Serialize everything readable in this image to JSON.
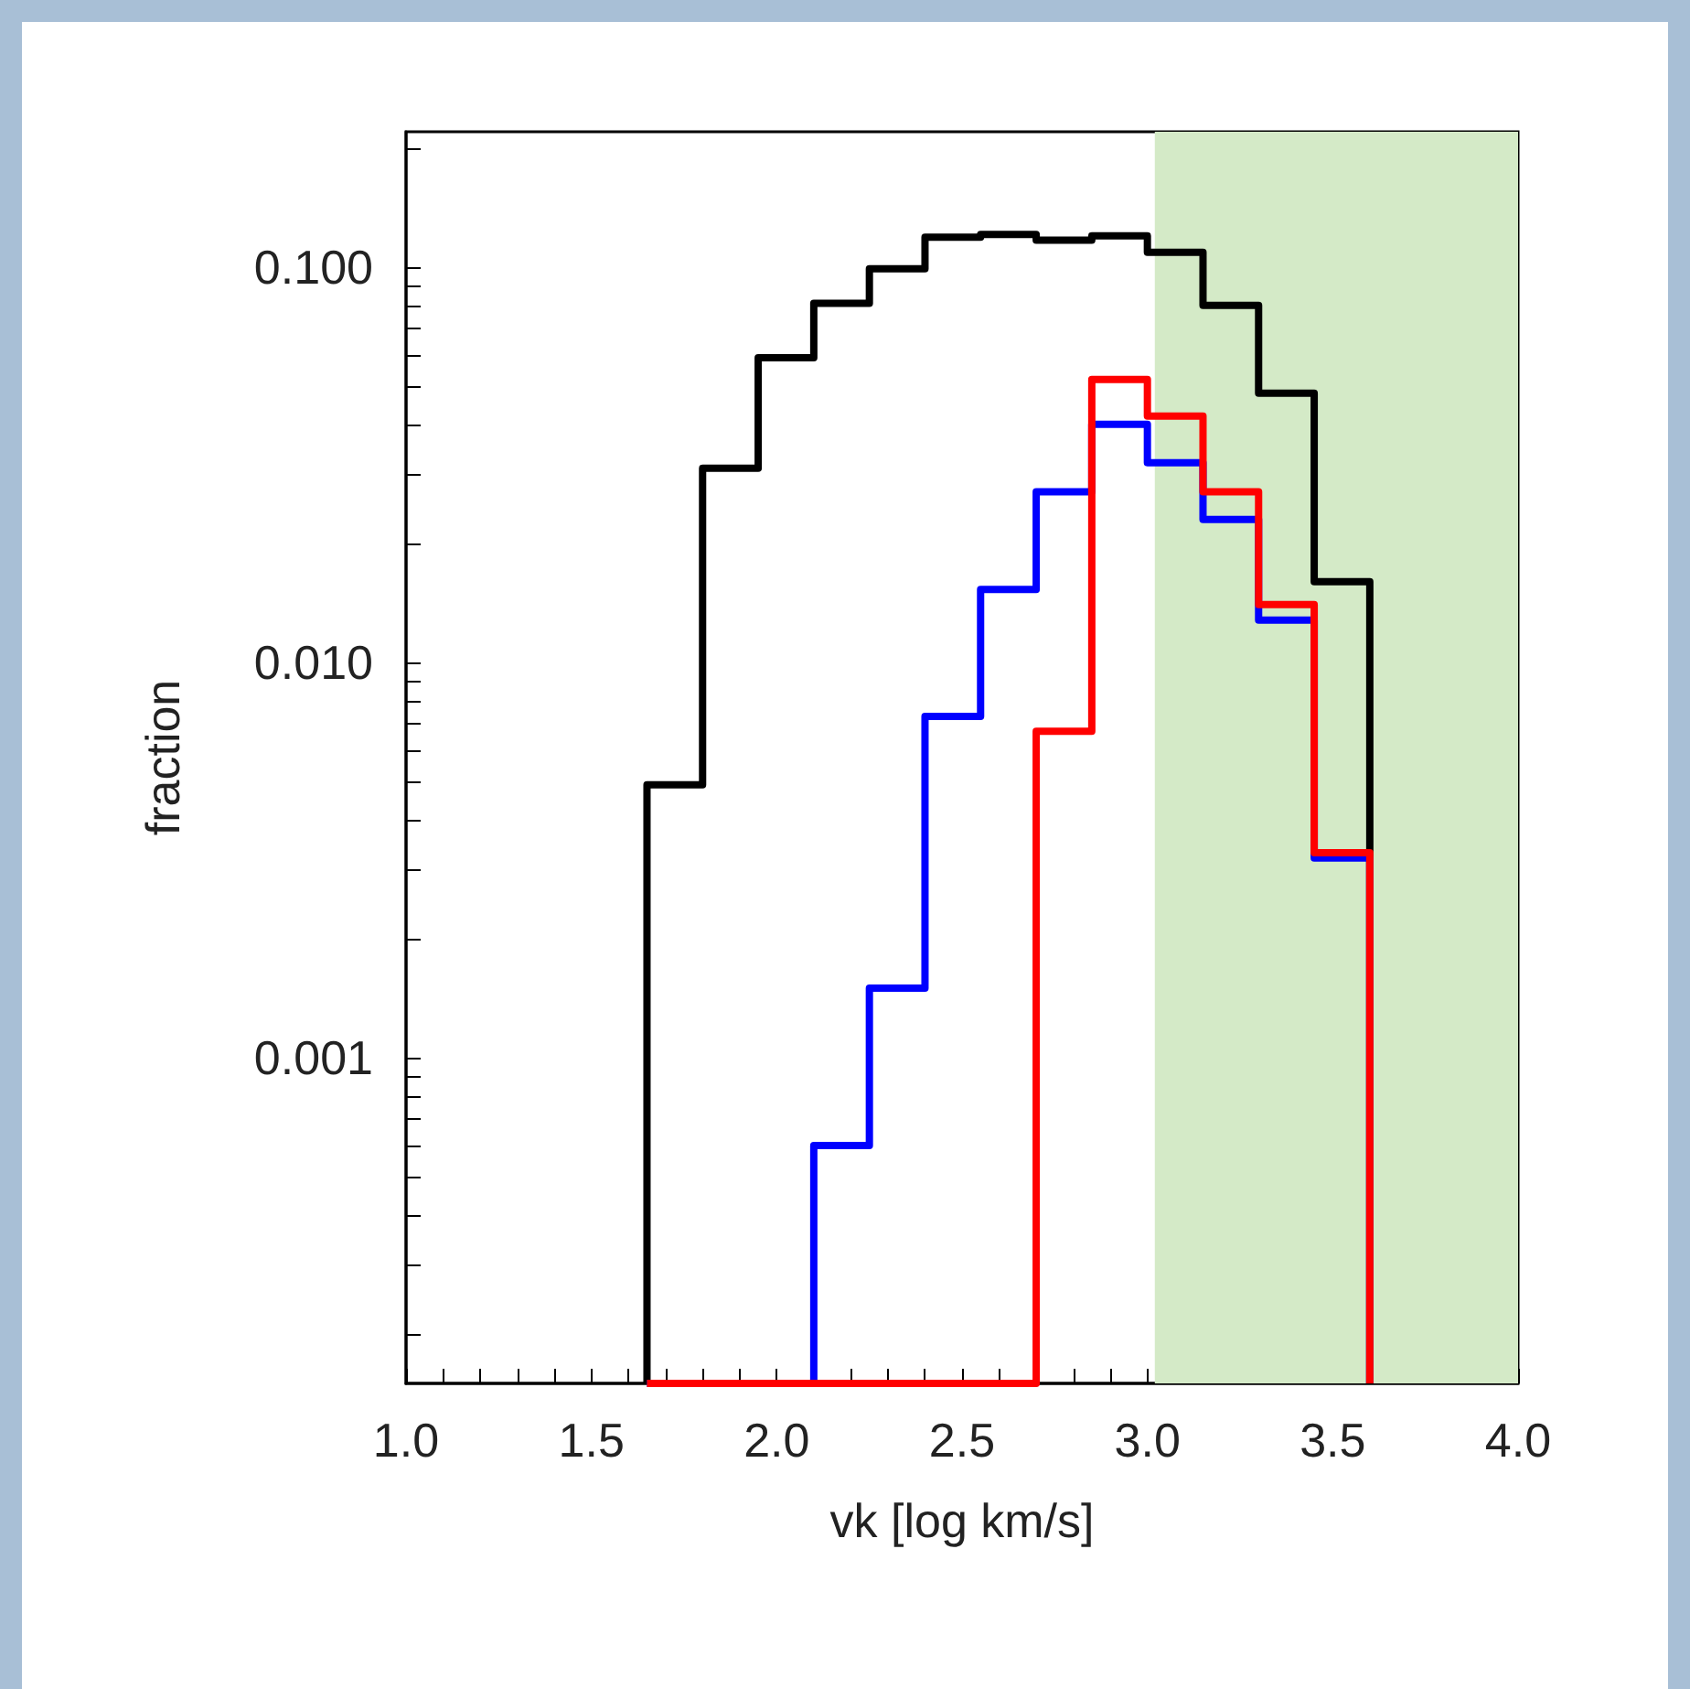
{
  "chart_data": {
    "type": "histogram",
    "xlabel": "vk [log km/s]",
    "ylabel": "fraction",
    "log": "y",
    "grid": false,
    "xlim": [
      1.0,
      4.0
    ],
    "xticks": [
      {
        "value": 1.0,
        "label": "1.0"
      },
      {
        "value": 1.1,
        "label": null
      },
      {
        "value": 1.2,
        "label": null
      },
      {
        "value": 1.3,
        "label": null
      },
      {
        "value": 1.4,
        "label": null
      },
      {
        "value": 1.5,
        "label": "1.5"
      },
      {
        "value": 1.6,
        "label": null
      },
      {
        "value": 1.7,
        "label": null
      },
      {
        "value": 1.8,
        "label": null
      },
      {
        "value": 1.9,
        "label": null
      },
      {
        "value": 2.0,
        "label": "2.0"
      },
      {
        "value": 2.1,
        "label": null
      },
      {
        "value": 2.2,
        "label": null
      },
      {
        "value": 2.3,
        "label": null
      },
      {
        "value": 2.4,
        "label": null
      },
      {
        "value": 2.5,
        "label": "2.5"
      },
      {
        "value": 2.6,
        "label": null
      },
      {
        "value": 2.7,
        "label": null
      },
      {
        "value": 2.8,
        "label": null
      },
      {
        "value": 2.9,
        "label": null
      },
      {
        "value": 3.0,
        "label": "3.0"
      },
      {
        "value": 3.1,
        "label": null
      },
      {
        "value": 3.2,
        "label": null
      },
      {
        "value": 3.3,
        "label": null
      },
      {
        "value": 3.4,
        "label": null
      },
      {
        "value": 3.5,
        "label": "3.5"
      },
      {
        "value": 3.6,
        "label": null
      },
      {
        "value": 3.7,
        "label": null
      },
      {
        "value": 3.8,
        "label": null
      },
      {
        "value": 3.9,
        "label": null
      },
      {
        "value": 4.0,
        "label": "4.0"
      }
    ],
    "ylim": [
      0.00015,
      0.22
    ],
    "yticks": [
      {
        "value": 0.0002,
        "label": null
      },
      {
        "value": 0.0003,
        "label": null
      },
      {
        "value": 0.0004,
        "label": null
      },
      {
        "value": 0.0005,
        "label": null
      },
      {
        "value": 0.0006,
        "label": null
      },
      {
        "value": 0.0007,
        "label": null
      },
      {
        "value": 0.0008,
        "label": null
      },
      {
        "value": 0.0009,
        "label": null
      },
      {
        "value": 0.001,
        "label": "0.001"
      },
      {
        "value": 0.002,
        "label": null
      },
      {
        "value": 0.003,
        "label": null
      },
      {
        "value": 0.004,
        "label": null
      },
      {
        "value": 0.005,
        "label": null
      },
      {
        "value": 0.006,
        "label": null
      },
      {
        "value": 0.007,
        "label": null
      },
      {
        "value": 0.008,
        "label": null
      },
      {
        "value": 0.009,
        "label": null
      },
      {
        "value": 0.01,
        "label": "0.010"
      },
      {
        "value": 0.02,
        "label": null
      },
      {
        "value": 0.03,
        "label": null
      },
      {
        "value": 0.04,
        "label": null
      },
      {
        "value": 0.05,
        "label": null
      },
      {
        "value": 0.06,
        "label": null
      },
      {
        "value": 0.07,
        "label": null
      },
      {
        "value": 0.08,
        "label": null
      },
      {
        "value": 0.09,
        "label": null
      },
      {
        "value": 0.1,
        "label": "0.100"
      },
      {
        "value": 0.2,
        "label": null
      }
    ],
    "bands": [
      {
        "axis": "x",
        "from": 3.02,
        "to": 4.0,
        "color": "#d4eac7"
      }
    ],
    "bins": [
      1.65,
      1.8,
      1.95,
      2.1,
      2.25,
      2.4,
      2.55,
      2.7,
      2.85,
      3.0,
      3.15,
      3.3,
      3.45,
      3.6
    ],
    "series": [
      {
        "color": "#000000",
        "values": [
          0.0049,
          0.031,
          0.059,
          0.081,
          0.099,
          0.119,
          0.121,
          0.117,
          0.12,
          0.109,
          0.08,
          0.048,
          0.016
        ]
      },
      {
        "color": "#0000ff",
        "values": [
          null,
          null,
          null,
          0.0006,
          0.0015,
          0.0073,
          0.0153,
          0.027,
          0.04,
          0.032,
          0.023,
          0.0128,
          0.0032
        ]
      },
      {
        "color": "#ff0000",
        "values": [
          null,
          null,
          null,
          null,
          null,
          null,
          null,
          0.0067,
          0.052,
          0.042,
          0.027,
          0.014,
          0.0033
        ]
      }
    ]
  }
}
